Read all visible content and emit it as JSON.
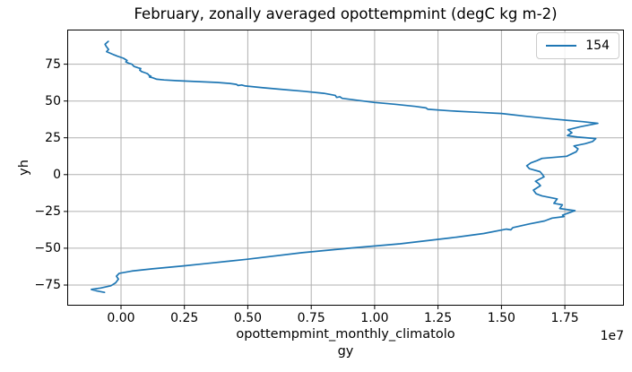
{
  "figure": {
    "title": "February, zonally averaged opottempmint (degC kg m-2)",
    "ylabel": "yh",
    "xlabel_line1": "opottempmint_monthly_climatolo",
    "xlabel_line2": "gy",
    "offset_text": "1e7",
    "legend_label": "154"
  },
  "colors": {
    "line": "#1f77b4",
    "grid": "#b0b0b0",
    "spine": "#000000",
    "background": "#ffffff",
    "legend_border": "#cccccc"
  },
  "chart_data": {
    "type": "line",
    "title": "February, zonally averaged opottempmint (degC kg m-2)",
    "xlabel": "opottempmint_monthly_climatology",
    "ylabel": "yh",
    "grid": true,
    "legend_position": "upper right",
    "x_unit_multiplier": 10000000,
    "x_offset_label": "1e7",
    "xlim": [
      -0.212,
      1.983
    ],
    "ylim": [
      -89.0,
      98.5
    ],
    "xtick_values": [
      0,
      0.25,
      0.5,
      0.75,
      1.0,
      1.25,
      1.5,
      1.75
    ],
    "xtick_labels": [
      "0.00",
      "0.25",
      "0.50",
      "0.75",
      "1.00",
      "1.25",
      "1.50",
      "1.75"
    ],
    "ytick_values": [
      -75,
      -50,
      -25,
      0,
      25,
      50,
      75
    ],
    "ytick_labels": [
      "−75",
      "−50",
      "−25",
      "0",
      "25",
      "50",
      "75"
    ],
    "series": [
      {
        "name": "154",
        "color": "#1f77b4",
        "points": [
          [
            -0.05,
            90.5
          ],
          [
            -0.063,
            88.5
          ],
          [
            -0.058,
            87.0
          ],
          [
            -0.049,
            85.0
          ],
          [
            -0.057,
            83.5
          ],
          [
            -0.03,
            81.5
          ],
          [
            -0.015,
            80.5
          ],
          [
            0.01,
            79.0
          ],
          [
            0.024,
            77.5
          ],
          [
            0.019,
            76.5
          ],
          [
            0.033,
            75.5
          ],
          [
            0.043,
            75.0
          ],
          [
            0.051,
            73.5
          ],
          [
            0.068,
            72.5
          ],
          [
            0.078,
            72.0
          ],
          [
            0.074,
            71.0
          ],
          [
            0.081,
            70.0
          ],
          [
            0.098,
            69.0
          ],
          [
            0.105,
            68.5
          ],
          [
            0.11,
            67.5
          ],
          [
            0.118,
            66.8
          ],
          [
            0.112,
            66.3
          ],
          [
            0.124,
            65.8
          ],
          [
            0.141,
            64.8
          ],
          [
            0.17,
            64.3
          ],
          [
            0.22,
            63.8
          ],
          [
            0.3,
            63.2
          ],
          [
            0.38,
            62.6
          ],
          [
            0.43,
            61.9
          ],
          [
            0.455,
            61.3
          ],
          [
            0.462,
            60.5
          ],
          [
            0.476,
            60.9
          ],
          [
            0.49,
            60.2
          ],
          [
            0.56,
            59.0
          ],
          [
            0.64,
            57.8
          ],
          [
            0.72,
            56.6
          ],
          [
            0.8,
            55.2
          ],
          [
            0.845,
            53.8
          ],
          [
            0.85,
            52.4
          ],
          [
            0.863,
            52.9
          ],
          [
            0.872,
            51.8
          ],
          [
            0.93,
            50.5
          ],
          [
            1.0,
            49.0
          ],
          [
            1.08,
            47.8
          ],
          [
            1.16,
            46.3
          ],
          [
            1.203,
            45.3
          ],
          [
            1.21,
            44.4
          ],
          [
            1.3,
            43.3
          ],
          [
            1.4,
            42.4
          ],
          [
            1.5,
            41.5
          ],
          [
            1.6,
            39.6
          ],
          [
            1.7,
            37.8
          ],
          [
            1.82,
            36.0
          ],
          [
            1.88,
            34.8
          ],
          [
            1.81,
            32.5
          ],
          [
            1.762,
            30.5
          ],
          [
            1.778,
            28.5
          ],
          [
            1.76,
            26.5
          ],
          [
            1.8,
            25.5
          ],
          [
            1.872,
            24.5
          ],
          [
            1.86,
            22.5
          ],
          [
            1.83,
            21.0
          ],
          [
            1.786,
            19.5
          ],
          [
            1.802,
            17.5
          ],
          [
            1.795,
            15.5
          ],
          [
            1.776,
            14.0
          ],
          [
            1.758,
            12.5
          ],
          [
            1.66,
            11.0
          ],
          [
            1.64,
            9.5
          ],
          [
            1.616,
            8.0
          ],
          [
            1.6,
            6.0
          ],
          [
            1.61,
            4.0
          ],
          [
            1.652,
            2.0
          ],
          [
            1.66,
            0.5
          ],
          [
            1.668,
            -1.5
          ],
          [
            1.634,
            -4.5
          ],
          [
            1.646,
            -6.0
          ],
          [
            1.654,
            -7.5
          ],
          [
            1.626,
            -10.5
          ],
          [
            1.637,
            -13.0
          ],
          [
            1.66,
            -14.5
          ],
          [
            1.72,
            -16.5
          ],
          [
            1.707,
            -19.5
          ],
          [
            1.74,
            -20.5
          ],
          [
            1.73,
            -23.0
          ],
          [
            1.79,
            -24.5
          ],
          [
            1.741,
            -27.5
          ],
          [
            1.747,
            -28.5
          ],
          [
            1.7,
            -29.5
          ],
          [
            1.67,
            -31.5
          ],
          [
            1.61,
            -33.5
          ],
          [
            1.545,
            -36.0
          ],
          [
            1.537,
            -37.5
          ],
          [
            1.52,
            -37.0
          ],
          [
            1.43,
            -40.0
          ],
          [
            1.3,
            -43.0
          ],
          [
            1.1,
            -47.0
          ],
          [
            0.9,
            -50.0
          ],
          [
            0.714,
            -53.0
          ],
          [
            0.495,
            -57.5
          ],
          [
            0.33,
            -60.5
          ],
          [
            0.247,
            -62.0
          ],
          [
            0.124,
            -64.0
          ],
          [
            0.042,
            -65.5
          ],
          [
            -0.007,
            -67.0
          ],
          [
            -0.018,
            -69.0
          ],
          [
            -0.01,
            -71.0
          ],
          [
            -0.021,
            -73.5
          ],
          [
            -0.04,
            -75.5
          ],
          [
            -0.08,
            -77.0
          ],
          [
            -0.117,
            -78.0
          ],
          [
            -0.095,
            -79.0
          ],
          [
            -0.065,
            -80.0
          ]
        ]
      }
    ]
  }
}
